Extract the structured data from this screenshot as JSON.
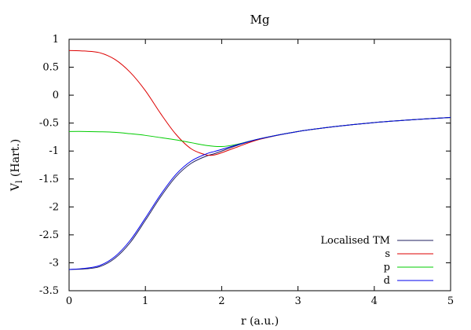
{
  "chart_data": {
    "type": "line",
    "title": "Mg",
    "xlabel": "r (a.u.)",
    "ylabel_main": "V",
    "ylabel_sub": "l",
    "ylabel_tail": " (Hart.)",
    "xlim": [
      0,
      5
    ],
    "ylim": [
      -3.5,
      1
    ],
    "xticks": [
      0,
      1,
      2,
      3,
      4,
      5
    ],
    "xtick_labels": [
      "0",
      "1",
      "2",
      "3",
      "4",
      "5"
    ],
    "yticks": [
      1,
      0.5,
      0,
      -0.5,
      -1,
      -1.5,
      -2,
      -2.5,
      -3,
      -3.5
    ],
    "ytick_labels": [
      "1",
      "0.5",
      "0",
      "-0.5",
      "-1",
      "-1.5",
      "-2",
      "-2.5",
      "-3",
      "-3.5"
    ],
    "grid": false,
    "legend_position": "bottom-right",
    "series": [
      {
        "name": "Localised TM",
        "color": "#1f1f5f",
        "x": [
          0,
          0.2,
          0.4,
          0.6,
          0.8,
          1.0,
          1.2,
          1.4,
          1.6,
          1.8,
          1.9,
          2.0,
          2.2,
          2.5,
          3.0,
          3.5,
          4.0,
          4.5,
          5.0
        ],
        "y": [
          -3.12,
          -3.11,
          -3.07,
          -2.92,
          -2.64,
          -2.24,
          -1.82,
          -1.46,
          -1.22,
          -1.09,
          -1.05,
          -1.0,
          -0.9,
          -0.78,
          -0.65,
          -0.56,
          -0.49,
          -0.44,
          -0.4
        ]
      },
      {
        "name": "s",
        "color": "#dd0000",
        "x": [
          0,
          0.2,
          0.4,
          0.6,
          0.8,
          1.0,
          1.2,
          1.4,
          1.6,
          1.8,
          1.9,
          2.0,
          2.2,
          2.5,
          3.0,
          3.5,
          4.0,
          4.5,
          5.0
        ],
        "y": [
          0.8,
          0.79,
          0.76,
          0.64,
          0.41,
          0.08,
          -0.33,
          -0.7,
          -0.96,
          -1.07,
          -1.07,
          -1.03,
          -0.93,
          -0.79,
          -0.65,
          -0.56,
          -0.49,
          -0.44,
          -0.4
        ]
      },
      {
        "name": "p",
        "color": "#00cc00",
        "x": [
          0,
          0.2,
          0.4,
          0.6,
          0.8,
          1.0,
          1.2,
          1.4,
          1.6,
          1.8,
          2.0,
          2.2,
          2.5,
          3.0,
          3.5,
          4.0,
          4.5,
          5.0
        ],
        "y": [
          -0.65,
          -0.65,
          -0.655,
          -0.665,
          -0.69,
          -0.72,
          -0.76,
          -0.8,
          -0.85,
          -0.9,
          -0.92,
          -0.88,
          -0.78,
          -0.65,
          -0.56,
          -0.49,
          -0.44,
          -0.4
        ]
      },
      {
        "name": "d",
        "color": "#0000ee",
        "x": [
          0,
          0.2,
          0.4,
          0.6,
          0.8,
          1.0,
          1.2,
          1.4,
          1.6,
          1.8,
          1.9,
          2.0,
          2.2,
          2.5,
          3.0,
          3.5,
          4.0,
          4.5,
          5.0
        ],
        "y": [
          -3.12,
          -3.1,
          -3.05,
          -2.89,
          -2.6,
          -2.2,
          -1.78,
          -1.42,
          -1.18,
          -1.05,
          -1.01,
          -0.97,
          -0.89,
          -0.78,
          -0.65,
          -0.56,
          -0.49,
          -0.44,
          -0.4
        ]
      }
    ]
  }
}
